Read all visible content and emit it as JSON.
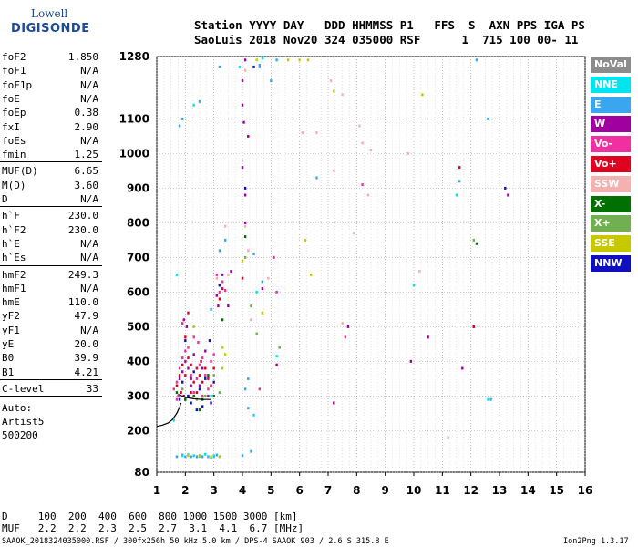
{
  "logo": {
    "line1": "Lowell",
    "line2": "DIGISONDE"
  },
  "header": {
    "line1": "Station YYYY DAY   DDD HHMMSS P1   FFS  S  AXN PPS IGA PS",
    "line2": "SaoLuis 2018 Nov20 324 035000 RSF      1  715 100 00- 11"
  },
  "parameters": [
    {
      "label": "foF2",
      "value": "1.850"
    },
    {
      "label": "foF1",
      "value": "N/A"
    },
    {
      "label": "foF1p",
      "value": "N/A"
    },
    {
      "label": "foE",
      "value": "N/A"
    },
    {
      "label": "foEp",
      "value": "0.38"
    },
    {
      "label": "fxI",
      "value": "2.90"
    },
    {
      "label": "foEs",
      "value": "N/A"
    },
    {
      "label": "fmin",
      "value": "1.25"
    },
    {
      "label": "MUF(D)",
      "value": "6.65"
    },
    {
      "label": "M(D)",
      "value": "3.60"
    },
    {
      "label": "D",
      "value": "N/A"
    },
    {
      "label": "h`F",
      "value": "230.0"
    },
    {
      "label": "h`F2",
      "value": "230.0"
    },
    {
      "label": "h`E",
      "value": "N/A"
    },
    {
      "label": "h`Es",
      "value": "N/A"
    },
    {
      "label": "hmF2",
      "value": "249.3"
    },
    {
      "label": "hmF1",
      "value": "N/A"
    },
    {
      "label": "hmE",
      "value": "110.0"
    },
    {
      "label": "yF2",
      "value": "47.9"
    },
    {
      "label": "yF1",
      "value": "N/A"
    },
    {
      "label": "yE",
      "value": "20.0"
    },
    {
      "label": "B0",
      "value": "39.9"
    },
    {
      "label": "B1",
      "value": "4.21"
    },
    {
      "label": "C-level",
      "value": "33"
    }
  ],
  "auto": {
    "line1": "Auto:",
    "line2": "Artist5",
    "line3": "500200"
  },
  "legend": [
    {
      "label": "NoVal",
      "color": "#8c8c8c"
    },
    {
      "label": "NNE",
      "color": "#00e5f0"
    },
    {
      "label": "E",
      "color": "#3aa6f0"
    },
    {
      "label": "W",
      "color": "#a000a0"
    },
    {
      "label": "Vo-",
      "color": "#f030a0"
    },
    {
      "label": "Vo+",
      "color": "#e00020"
    },
    {
      "label": "SSW",
      "color": "#f5b0b0"
    },
    {
      "label": "X-",
      "color": "#007000"
    },
    {
      "label": "X+",
      "color": "#70b050"
    },
    {
      "label": "SSE",
      "color": "#c8c800"
    },
    {
      "label": "NNW",
      "color": "#1010c0"
    }
  ],
  "footer": {
    "d_line": "D     100  200  400  600  800 1000 1500 3000 [km]",
    "muf_line": "MUF   2.2  2.2  2.3  2.5  2.7  3.1  4.1  6.7 [MHz]",
    "file_line": "SAAOK_2018324035000.RSF / 300fx256h 50 kHz 5.0 km / DPS-4 SAAOK 903 / 2.6 S 315.8 E",
    "version": "Ion2Png 1.3.17"
  },
  "chart_data": {
    "type": "scatter",
    "title": "",
    "xlabel": "",
    "ylabel": "",
    "xlim": [
      1,
      16
    ],
    "ylim": [
      80,
      1280
    ],
    "x_ticks": [
      1,
      2,
      3,
      4,
      5,
      6,
      7,
      8,
      9,
      10,
      11,
      12,
      13,
      14,
      15,
      16
    ],
    "y_ticks": [
      80,
      200,
      300,
      400,
      500,
      600,
      700,
      800,
      900,
      1000,
      1100,
      1280
    ],
    "grid": true,
    "legend_position": "right",
    "trace_h_F": [
      [
        1.0,
        212
      ],
      [
        1.2,
        216
      ],
      [
        1.4,
        222
      ],
      [
        1.55,
        232
      ],
      [
        1.7,
        250
      ],
      [
        1.8,
        268
      ],
      [
        1.85,
        280
      ]
    ],
    "trace_fxI": [
      [
        1.75,
        305
      ],
      [
        2.0,
        296
      ],
      [
        2.3,
        292
      ],
      [
        2.6,
        290
      ],
      [
        2.9,
        290
      ]
    ],
    "series": [
      {
        "name": "E",
        "points": [
          [
            2.0,
            125
          ],
          [
            2.2,
            125
          ],
          [
            2.4,
            125
          ],
          [
            2.6,
            125
          ],
          [
            2.8,
            125
          ],
          [
            3.0,
            125
          ],
          [
            3.2,
            125
          ],
          [
            1.7,
            125
          ],
          [
            1.9,
            130
          ],
          [
            2.5,
            128
          ],
          [
            2.9,
            122
          ],
          [
            3.1,
            130
          ],
          [
            4.0,
            128
          ],
          [
            4.3,
            140
          ],
          [
            1.8,
            1080
          ],
          [
            1.9,
            1100
          ],
          [
            2.5,
            1150
          ],
          [
            3.2,
            1250
          ],
          [
            4.6,
            1250
          ],
          [
            5.0,
            1210
          ],
          [
            3.4,
            750
          ],
          [
            4.4,
            710
          ],
          [
            4.7,
            630
          ],
          [
            3.2,
            720
          ],
          [
            2.9,
            550
          ],
          [
            12.7,
            290
          ],
          [
            6.6,
            930
          ],
          [
            4.2,
            265
          ],
          [
            4.1,
            320
          ],
          [
            12.2,
            1270
          ],
          [
            12.6,
            1100
          ],
          [
            11.6,
            920
          ],
          [
            4.6,
            1255
          ],
          [
            5.2,
            1270
          ],
          [
            4.2,
            350
          ]
        ]
      },
      {
        "name": "NNE",
        "points": [
          [
            1.9,
            128
          ],
          [
            2.1,
            131
          ],
          [
            2.3,
            128
          ],
          [
            2.5,
            126
          ],
          [
            2.7,
            132
          ],
          [
            3.0,
            128
          ],
          [
            2.3,
            1140
          ],
          [
            1.7,
            650
          ],
          [
            4.4,
            245
          ],
          [
            10.0,
            620
          ],
          [
            11.5,
            880
          ],
          [
            4.7,
            1275
          ],
          [
            3.9,
            1250
          ],
          [
            4.5,
            600
          ],
          [
            5.2,
            415
          ],
          [
            12.6,
            290
          ],
          [
            2.9,
            300
          ],
          [
            1.6,
            230
          ]
        ]
      },
      {
        "name": "W",
        "points": [
          [
            1.8,
            350
          ],
          [
            1.9,
            370
          ],
          [
            2.0,
            400
          ],
          [
            2.1,
            380
          ],
          [
            2.2,
            350
          ],
          [
            2.3,
            420
          ],
          [
            2.5,
            330
          ],
          [
            2.6,
            380
          ],
          [
            2.8,
            300
          ],
          [
            2.7,
            430
          ],
          [
            1.95,
            520
          ],
          [
            2.05,
            500
          ],
          [
            3.1,
            590
          ],
          [
            3.2,
            620
          ],
          [
            3.3,
            650
          ],
          [
            3.15,
            560
          ],
          [
            4.0,
            1210
          ],
          [
            4.05,
            1090
          ],
          [
            4.0,
            960
          ],
          [
            4.1,
            800
          ],
          [
            4.0,
            1140
          ],
          [
            4.1,
            1270
          ],
          [
            5.2,
            390
          ],
          [
            4.7,
            610
          ],
          [
            7.7,
            500
          ],
          [
            9.9,
            400
          ],
          [
            10.5,
            470
          ],
          [
            11.7,
            380
          ],
          [
            13.3,
            880
          ],
          [
            12.1,
            500
          ],
          [
            1.95,
            300
          ],
          [
            2.0,
            290
          ],
          [
            2.2,
            330
          ],
          [
            7.2,
            280
          ],
          [
            4.2,
            1050
          ],
          [
            4.1,
            880
          ],
          [
            3.6,
            660
          ],
          [
            3.5,
            560
          ]
        ]
      },
      {
        "name": "Vo-",
        "points": [
          [
            1.6,
            320
          ],
          [
            1.7,
            340
          ],
          [
            1.8,
            380
          ],
          [
            1.9,
            410
          ],
          [
            2.0,
            430
          ],
          [
            2.1,
            440
          ],
          [
            2.2,
            360
          ],
          [
            2.3,
            310
          ],
          [
            2.4,
            350
          ],
          [
            2.5,
            390
          ],
          [
            2.6,
            410
          ],
          [
            2.7,
            360
          ],
          [
            2.8,
            320
          ],
          [
            2.9,
            400
          ],
          [
            3.0,
            420
          ],
          [
            1.9,
            510
          ],
          [
            2.3,
            470
          ],
          [
            3.2,
            600
          ],
          [
            3.3,
            630
          ],
          [
            3.1,
            650
          ],
          [
            4.6,
            320
          ],
          [
            5.2,
            600
          ],
          [
            5.1,
            700
          ],
          [
            8.2,
            910
          ],
          [
            7.6,
            470
          ],
          [
            1.7,
            290
          ],
          [
            1.75,
            300
          ],
          [
            2.1,
            300
          ],
          [
            2.6,
            300
          ],
          [
            2.45,
            455
          ],
          [
            3.4,
            605
          ]
        ]
      },
      {
        "name": "Vo+",
        "points": [
          [
            1.7,
            330
          ],
          [
            1.8,
            360
          ],
          [
            1.9,
            390
          ],
          [
            2.0,
            360
          ],
          [
            2.1,
            410
          ],
          [
            2.2,
            390
          ],
          [
            2.3,
            340
          ],
          [
            2.4,
            380
          ],
          [
            2.5,
            360
          ],
          [
            2.6,
            340
          ],
          [
            2.7,
            380
          ],
          [
            2.8,
            350
          ],
          [
            2.9,
            330
          ],
          [
            3.0,
            380
          ],
          [
            2.0,
            470
          ],
          [
            2.1,
            540
          ],
          [
            3.2,
            580
          ],
          [
            3.3,
            610
          ],
          [
            4.0,
            640
          ],
          [
            12.1,
            500
          ],
          [
            11.6,
            960
          ],
          [
            1.85,
            310
          ],
          [
            2.2,
            310
          ],
          [
            2.4,
            310
          ],
          [
            2.55,
            400
          ]
        ]
      },
      {
        "name": "SSW",
        "points": [
          [
            3.1,
            640
          ],
          [
            3.5,
            650
          ],
          [
            4.0,
            980
          ],
          [
            4.1,
            790
          ],
          [
            4.2,
            720
          ],
          [
            4.3,
            520
          ],
          [
            6.1,
            1060
          ],
          [
            6.6,
            1060
          ],
          [
            7.1,
            1210
          ],
          [
            7.2,
            950
          ],
          [
            7.5,
            1170
          ],
          [
            7.9,
            770
          ],
          [
            8.1,
            1080
          ],
          [
            8.2,
            1030
          ],
          [
            8.4,
            880
          ],
          [
            8.5,
            1010
          ],
          [
            9.8,
            1000
          ],
          [
            10.2,
            660
          ],
          [
            11.2,
            180
          ],
          [
            7.5,
            510
          ],
          [
            4.9,
            640
          ],
          [
            3.4,
            790
          ],
          [
            4.1,
            1240
          ]
        ]
      },
      {
        "name": "X-",
        "points": [
          [
            2.0,
            290
          ],
          [
            2.3,
            300
          ],
          [
            2.6,
            290
          ],
          [
            3.0,
            300
          ],
          [
            4.1,
            760
          ],
          [
            12.2,
            740
          ],
          [
            3.3,
            520
          ],
          [
            1.7,
            310
          ],
          [
            2.8,
            360
          ],
          [
            2.5,
            260
          ]
        ]
      },
      {
        "name": "X+",
        "points": [
          [
            2.1,
            300
          ],
          [
            2.4,
            290
          ],
          [
            2.7,
            300
          ],
          [
            3.2,
            310
          ],
          [
            4.1,
            700
          ],
          [
            5.3,
            440
          ],
          [
            4.5,
            480
          ],
          [
            1.9,
            320
          ],
          [
            3.0,
            360
          ],
          [
            4.3,
            560
          ],
          [
            12.1,
            750
          ]
        ]
      },
      {
        "name": "SSE",
        "points": [
          [
            2.1,
            128
          ],
          [
            2.5,
            128
          ],
          [
            2.9,
            125
          ],
          [
            3.2,
            125
          ],
          [
            3.4,
            420
          ],
          [
            3.3,
            380
          ],
          [
            4.5,
            1270
          ],
          [
            6.3,
            1270
          ],
          [
            6.0,
            1270
          ],
          [
            6.4,
            650
          ],
          [
            7.2,
            1180
          ],
          [
            5.6,
            1270
          ],
          [
            4.0,
            690
          ],
          [
            10.3,
            1170
          ],
          [
            6.2,
            750
          ],
          [
            4.7,
            540
          ],
          [
            3.3,
            440
          ],
          [
            2.3,
            500
          ]
        ]
      },
      {
        "name": "NNW",
        "points": [
          [
            1.9,
            340
          ],
          [
            2.1,
            300
          ],
          [
            2.3,
            370
          ],
          [
            2.5,
            320
          ],
          [
            2.7,
            350
          ],
          [
            2.9,
            280
          ],
          [
            3.0,
            340
          ],
          [
            2.2,
            280
          ],
          [
            2.4,
            260
          ],
          [
            2.6,
            270
          ],
          [
            1.8,
            290
          ],
          [
            4.1,
            900
          ],
          [
            4.4,
            1250
          ],
          [
            3.2,
            620
          ],
          [
            13.2,
            900
          ],
          [
            2.85,
            460
          ],
          [
            2.0,
            460
          ]
        ]
      }
    ]
  }
}
